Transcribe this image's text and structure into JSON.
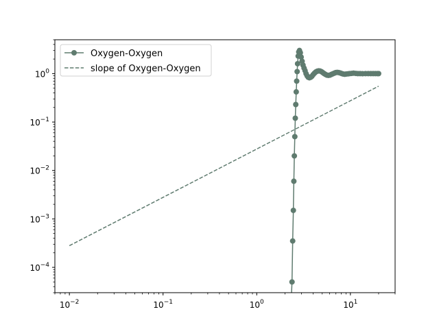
{
  "chart_data": {
    "type": "line",
    "title": "",
    "xlabel": "",
    "ylabel": "",
    "xscale": "log",
    "yscale": "log",
    "xlim": [
      0.007,
      30
    ],
    "ylim": [
      3e-05,
      5
    ],
    "grid": false,
    "legend_position": "top-left",
    "x_ticks": [
      {
        "value": 0.01,
        "base": "10",
        "exp": "−2"
      },
      {
        "value": 0.1,
        "base": "10",
        "exp": "−1"
      },
      {
        "value": 1,
        "base": "10",
        "exp": "0"
      },
      {
        "value": 10,
        "base": "10",
        "exp": "1"
      }
    ],
    "y_ticks": [
      {
        "value": 0.0001,
        "base": "10",
        "exp": "−4"
      },
      {
        "value": 0.001,
        "base": "10",
        "exp": "−3"
      },
      {
        "value": 0.01,
        "base": "10",
        "exp": "−2"
      },
      {
        "value": 0.1,
        "base": "10",
        "exp": "−1"
      },
      {
        "value": 1,
        "base": "10",
        "exp": "0"
      }
    ],
    "colors": {
      "series": "#5f7b6f"
    },
    "series": [
      {
        "name": "Oxygen-Oxygen",
        "style": "solid-with-circle-markers",
        "x": [
          2.3,
          2.38,
          2.42,
          2.46,
          2.49,
          2.52,
          2.55,
          2.58,
          2.61,
          2.64,
          2.67,
          2.7,
          2.73,
          2.77,
          2.81,
          2.86,
          2.92,
          2.98,
          3.05,
          3.12,
          3.2,
          3.28,
          3.36,
          3.45,
          3.55,
          3.65,
          3.76,
          3.88,
          4.0,
          4.13,
          4.27,
          4.42,
          4.58,
          4.74,
          4.9,
          5.07,
          5.25,
          5.43,
          5.62,
          5.82,
          6.03,
          6.25,
          6.48,
          6.72,
          6.97,
          7.23,
          7.5,
          7.8,
          8.1,
          8.4,
          8.7,
          9.0,
          9.4,
          9.8,
          10.3,
          10.8,
          11.4,
          12.0,
          12.7,
          13.5,
          14.5,
          15.5,
          16.5,
          17.5,
          18.5,
          19.5,
          20.0
        ],
        "y": [
          1e-05,
          5e-05,
          0.00035,
          0.0015,
          0.006,
          0.02,
          0.05,
          0.12,
          0.23,
          0.42,
          0.7,
          1.1,
          1.6,
          2.3,
          2.8,
          3.0,
          2.7,
          2.2,
          1.8,
          1.5,
          1.3,
          1.15,
          1.0,
          0.9,
          0.84,
          0.82,
          0.84,
          0.88,
          0.95,
          1.02,
          1.08,
          1.12,
          1.14,
          1.13,
          1.1,
          1.05,
          1.0,
          0.96,
          0.93,
          0.92,
          0.93,
          0.96,
          0.99,
          1.02,
          1.05,
          1.06,
          1.05,
          1.03,
          1.0,
          0.98,
          0.97,
          0.98,
          0.99,
          1.0,
          1.01,
          1.02,
          1.01,
          1.0,
          1.0,
          0.995,
          1.0,
          1.0,
          1.0,
          1.0,
          1.0,
          1.0,
          1.0
        ]
      },
      {
        "name": "slope of Oxygen-Oxygen",
        "style": "dashed",
        "x": [
          0.01,
          20
        ],
        "y": [
          0.00028,
          0.55
        ]
      }
    ]
  }
}
